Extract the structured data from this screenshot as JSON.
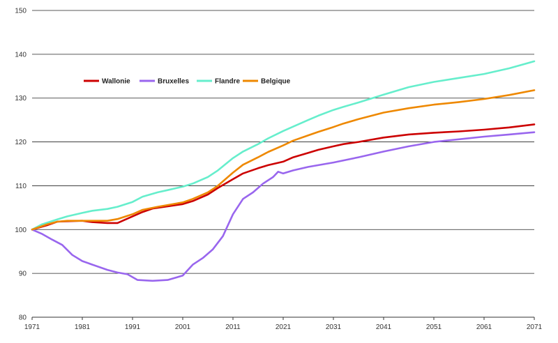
{
  "chart_data": {
    "type": "line",
    "title": "",
    "xlabel": "",
    "ylabel": "",
    "xlim": [
      1971,
      2071
    ],
    "ylim": [
      80,
      150
    ],
    "x_ticks": [
      "1971",
      "1981",
      "1991",
      "2001",
      "2011",
      "2021",
      "2031",
      "2041",
      "2051",
      "2061",
      "2071"
    ],
    "y_ticks": [
      "80",
      "90",
      "100",
      "110",
      "120",
      "130",
      "140",
      "150"
    ],
    "grid": "horizontal",
    "legend_position": "top-left",
    "series": [
      {
        "name": "Wallonie",
        "color": "#cc0000",
        "points": [
          [
            1971,
            100
          ],
          [
            1974,
            101
          ],
          [
            1976,
            101.8
          ],
          [
            1978,
            101.9
          ],
          [
            1981,
            102
          ],
          [
            1983,
            101.7
          ],
          [
            1986,
            101.5
          ],
          [
            1988,
            101.5
          ],
          [
            1990,
            102.5
          ],
          [
            1993,
            104
          ],
          [
            1995,
            104.8
          ],
          [
            1998,
            105.3
          ],
          [
            2001,
            105.8
          ],
          [
            2003,
            106.5
          ],
          [
            2006,
            108
          ],
          [
            2008,
            109.5
          ],
          [
            2011,
            111.5
          ],
          [
            2013,
            112.8
          ],
          [
            2016,
            114
          ],
          [
            2018,
            114.7
          ],
          [
            2021,
            115.5
          ],
          [
            2023,
            116.5
          ],
          [
            2026,
            117.5
          ],
          [
            2028,
            118.2
          ],
          [
            2031,
            119
          ],
          [
            2033,
            119.5
          ],
          [
            2036,
            120
          ],
          [
            2041,
            121
          ],
          [
            2046,
            121.7
          ],
          [
            2051,
            122.1
          ],
          [
            2056,
            122.4
          ],
          [
            2061,
            122.8
          ],
          [
            2066,
            123.3
          ],
          [
            2071,
            124
          ]
        ]
      },
      {
        "name": "Bruxelles",
        "color": "#9966ee",
        "points": [
          [
            1971,
            100
          ],
          [
            1973,
            99
          ],
          [
            1975,
            97.7
          ],
          [
            1977,
            96.5
          ],
          [
            1979,
            94.2
          ],
          [
            1981,
            92.8
          ],
          [
            1983,
            92
          ],
          [
            1986,
            90.8
          ],
          [
            1988,
            90.2
          ],
          [
            1990,
            89.8
          ],
          [
            1992,
            88.5
          ],
          [
            1995,
            88.3
          ],
          [
            1998,
            88.5
          ],
          [
            2001,
            89.5
          ],
          [
            2003,
            92
          ],
          [
            2005,
            93.5
          ],
          [
            2007,
            95.5
          ],
          [
            2009,
            98.5
          ],
          [
            2011,
            103.5
          ],
          [
            2013,
            107
          ],
          [
            2015,
            108.5
          ],
          [
            2017,
            110.5
          ],
          [
            2019,
            112
          ],
          [
            2020,
            113.2
          ],
          [
            2021,
            112.8
          ],
          [
            2023,
            113.5
          ],
          [
            2026,
            114.3
          ],
          [
            2028,
            114.7
          ],
          [
            2031,
            115.3
          ],
          [
            2036,
            116.5
          ],
          [
            2041,
            117.8
          ],
          [
            2046,
            119
          ],
          [
            2051,
            120
          ],
          [
            2056,
            120.6
          ],
          [
            2061,
            121.2
          ],
          [
            2066,
            121.7
          ],
          [
            2071,
            122.2
          ]
        ]
      },
      {
        "name": "Flandre",
        "color": "#66eecc",
        "points": [
          [
            1971,
            100
          ],
          [
            1973,
            101.2
          ],
          [
            1976,
            102.3
          ],
          [
            1978,
            103
          ],
          [
            1981,
            103.8
          ],
          [
            1983,
            104.3
          ],
          [
            1986,
            104.7
          ],
          [
            1988,
            105.2
          ],
          [
            1991,
            106.3
          ],
          [
            1993,
            107.5
          ],
          [
            1996,
            108.5
          ],
          [
            1998,
            109
          ],
          [
            2001,
            109.8
          ],
          [
            2003,
            110.5
          ],
          [
            2006,
            112
          ],
          [
            2008,
            113.5
          ],
          [
            2011,
            116.3
          ],
          [
            2013,
            117.8
          ],
          [
            2016,
            119.5
          ],
          [
            2018,
            120.8
          ],
          [
            2021,
            122.5
          ],
          [
            2023,
            123.5
          ],
          [
            2026,
            125
          ],
          [
            2028,
            126
          ],
          [
            2031,
            127.3
          ],
          [
            2033,
            128
          ],
          [
            2036,
            129
          ],
          [
            2041,
            130.8
          ],
          [
            2046,
            132.5
          ],
          [
            2051,
            133.7
          ],
          [
            2056,
            134.6
          ],
          [
            2061,
            135.5
          ],
          [
            2066,
            136.8
          ],
          [
            2071,
            138.4
          ]
        ]
      },
      {
        "name": "Belgique",
        "color": "#ee8800",
        "points": [
          [
            1971,
            100
          ],
          [
            1974,
            101.2
          ],
          [
            1976,
            101.8
          ],
          [
            1978,
            102
          ],
          [
            1981,
            102
          ],
          [
            1983,
            102
          ],
          [
            1986,
            102
          ],
          [
            1988,
            102.4
          ],
          [
            1991,
            103.5
          ],
          [
            1993,
            104.5
          ],
          [
            1996,
            105.2
          ],
          [
            1998,
            105.6
          ],
          [
            2001,
            106.2
          ],
          [
            2003,
            107
          ],
          [
            2006,
            108.5
          ],
          [
            2008,
            110
          ],
          [
            2011,
            113
          ],
          [
            2013,
            114.8
          ],
          [
            2016,
            116.5
          ],
          [
            2018,
            117.7
          ],
          [
            2021,
            119.2
          ],
          [
            2023,
            120.3
          ],
          [
            2026,
            121.5
          ],
          [
            2028,
            122.3
          ],
          [
            2031,
            123.4
          ],
          [
            2033,
            124.2
          ],
          [
            2036,
            125.2
          ],
          [
            2041,
            126.7
          ],
          [
            2046,
            127.7
          ],
          [
            2051,
            128.5
          ],
          [
            2056,
            129.1
          ],
          [
            2061,
            129.8
          ],
          [
            2066,
            130.7
          ],
          [
            2071,
            131.8
          ]
        ]
      }
    ]
  }
}
